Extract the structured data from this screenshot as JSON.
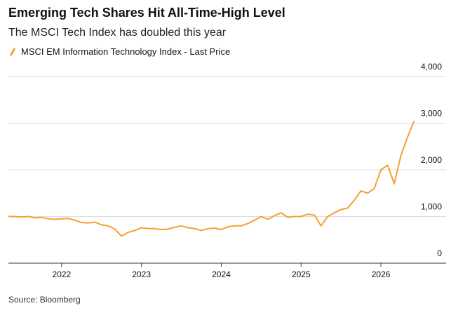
{
  "chart_data": {
    "type": "line",
    "title": "Emerging Tech Shares Hit All-Time-High Level",
    "subtitle": "The MSCI Tech Index has doubled this year",
    "source": "Source: Bloomberg",
    "x": [
      "2021-05",
      "2021-06",
      "2021-07",
      "2021-08",
      "2021-09",
      "2021-10",
      "2021-11",
      "2021-12",
      "2022-01",
      "2022-02",
      "2022-03",
      "2022-04",
      "2022-05",
      "2022-06",
      "2022-07",
      "2022-08",
      "2022-09",
      "2022-10",
      "2022-11",
      "2022-12",
      "2023-01",
      "2023-02",
      "2023-03",
      "2023-04",
      "2023-05",
      "2023-06",
      "2023-07",
      "2023-08",
      "2023-09",
      "2023-10",
      "2023-11",
      "2023-12",
      "2024-01",
      "2024-02",
      "2024-03",
      "2024-04",
      "2024-05",
      "2024-06",
      "2024-07",
      "2024-08",
      "2024-09",
      "2024-10",
      "2024-11",
      "2024-12",
      "2025-01",
      "2025-02",
      "2025-03",
      "2025-04",
      "2025-05",
      "2025-06",
      "2025-07",
      "2025-08",
      "2025-09",
      "2025-10",
      "2025-11",
      "2025-12",
      "2026-01",
      "2026-02",
      "2026-03",
      "2026-04",
      "2026-05",
      "2026-06"
    ],
    "series": [
      {
        "name": "MSCI EM Information Technology Index - Last Price",
        "color": "#f5a031",
        "values": [
          1000,
          1000,
          990,
          1000,
          970,
          980,
          950,
          940,
          950,
          960,
          920,
          870,
          860,
          880,
          820,
          800,
          730,
          580,
          660,
          700,
          760,
          740,
          740,
          720,
          730,
          770,
          800,
          760,
          740,
          700,
          740,
          750,
          720,
          780,
          800,
          800,
          850,
          920,
          1000,
          940,
          1020,
          1080,
          980,
          1000,
          1000,
          1050,
          1030,
          800,
          1000,
          1080,
          1150,
          1180,
          1350,
          1550,
          1500,
          1600,
          2000,
          2100,
          1700,
          2300,
          2700,
          3050
        ]
      }
    ],
    "xlim": [
      "2021-05",
      "2026-07"
    ],
    "xticks": [
      "2022",
      "2023",
      "2024",
      "2025",
      "2026"
    ],
    "ylim": [
      0,
      4000
    ],
    "yticks": [
      {
        "value": 0,
        "label": "0"
      },
      {
        "value": 1000,
        "label": "1,000"
      },
      {
        "value": 2000,
        "label": "2,000"
      },
      {
        "value": 3000,
        "label": "3,000"
      },
      {
        "value": 4000,
        "label": "4,000"
      }
    ],
    "grid": true
  }
}
